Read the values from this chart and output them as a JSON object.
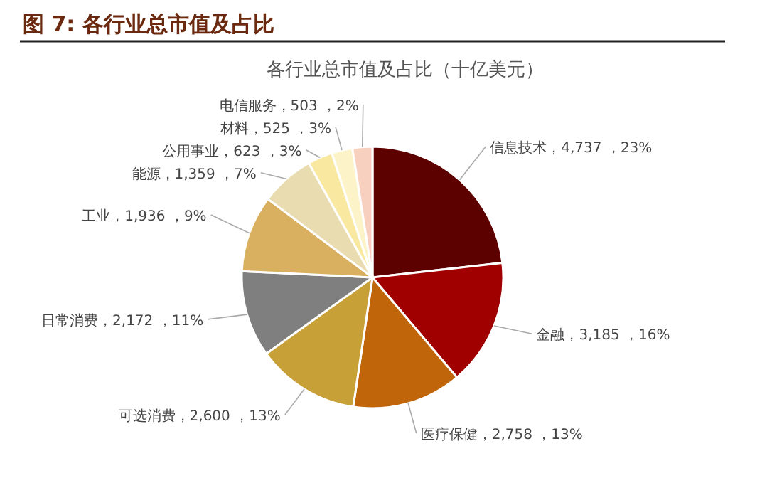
{
  "chart_data": {
    "type": "pie",
    "title": "图 7: 各行业总市值及占比",
    "subtitle": "各行业总市值及占比（十亿美元）",
    "categories": [
      "信息技术",
      "金融",
      "医疗保健",
      "可选消费",
      "日常消费",
      "工业",
      "能源",
      "公用事业",
      "材料",
      "电信服务"
    ],
    "values": [
      4737,
      3185,
      2758,
      2600,
      2172,
      1936,
      1359,
      623,
      525,
      503
    ],
    "value_labels": [
      "4,737 ，23%",
      "3,185 ，16%",
      "2,758 ，13%",
      "2,600 ，13%",
      "2,172 ，11%",
      "1,936 ，9%",
      "1,359 ，7%",
      "623 ，3%",
      "525 ，3%",
      "503 ，2%"
    ],
    "colors": [
      "#5c0000",
      "#a00000",
      "#c0650a",
      "#c8a038",
      "#7f7f7f",
      "#d8b060",
      "#e8dcb0",
      "#f8e8a0",
      "#fcf3c8",
      "#f8d0c0"
    ]
  }
}
